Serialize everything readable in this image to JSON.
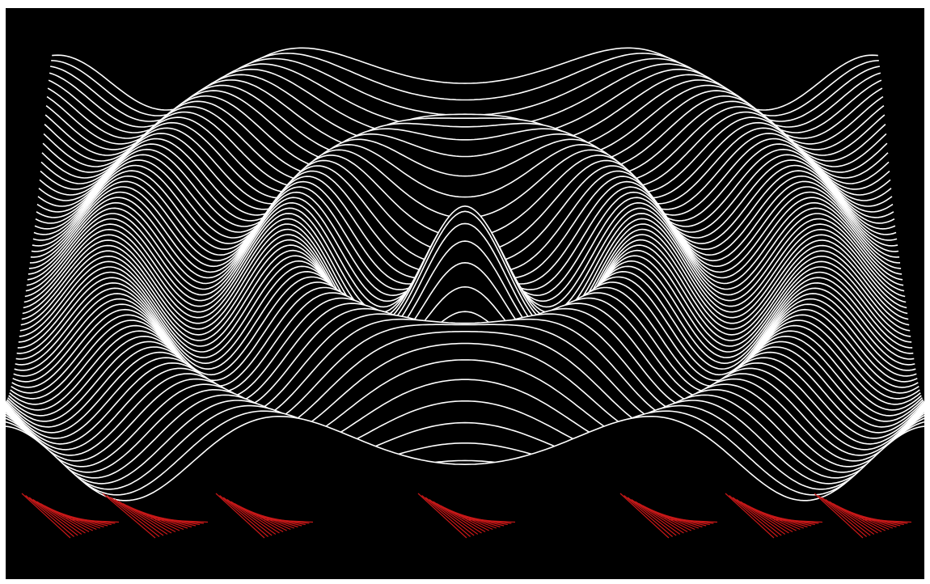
{
  "scene": {
    "kind": "wireframe-surface-plot",
    "colors": {
      "background": "#000000",
      "border": "#ffffff",
      "front_lines": "#ffffff",
      "back_lines": "#c81818"
    }
  }
}
